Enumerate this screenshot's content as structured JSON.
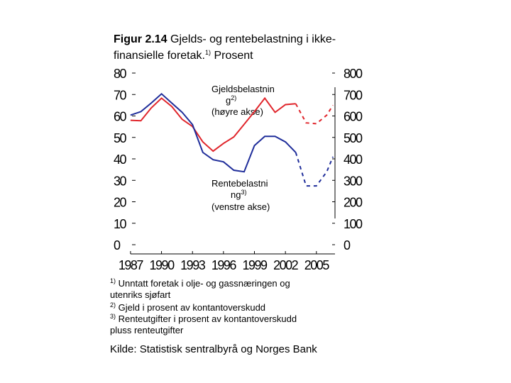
{
  "chart_data": {
    "type": "line",
    "title": {
      "label": "Figur 2.14",
      "line1": "Gjelds- og rentebelastning i ikke-",
      "line2": "finansielle foretak.",
      "note": "1)",
      "suffix": "Prosent"
    },
    "xlim": [
      1986.8,
      2006.8
    ],
    "xticks": [
      1987,
      1990,
      1993,
      1996,
      1999,
      2002,
      2005
    ],
    "ylim": [
      0,
      80
    ],
    "yticks": [
      0,
      10,
      20,
      30,
      40,
      50,
      60,
      70,
      80
    ],
    "y2lim": [
      0,
      800
    ],
    "y2ticks": [
      0,
      100,
      200,
      300,
      400,
      500,
      600,
      700,
      800
    ],
    "series": [
      {
        "color": "#e0252b",
        "axis": "y2",
        "dashed": false,
        "x": [
          1987,
          1988,
          1989,
          1990,
          1991,
          1992,
          1993,
          1994,
          1995,
          1996,
          1997,
          1998,
          1999,
          2000,
          2001,
          2002,
          2003
        ],
        "values": [
          580,
          578,
          637,
          683,
          644,
          584,
          551,
          479,
          436,
          472,
          502,
          561,
          620,
          683,
          617,
          653,
          657
        ]
      },
      {
        "color": "#e0252b",
        "axis": "y2",
        "dashed": true,
        "x": [
          2003,
          2004,
          2005,
          2006,
          2006.6
        ],
        "values": [
          657,
          568,
          564,
          604,
          650
        ]
      },
      {
        "color": "#1f2d9a",
        "dashed": false,
        "x": [
          1987,
          1988,
          1989,
          1990,
          1991,
          1992,
          1993,
          1994,
          1995,
          1996,
          1997,
          1998,
          1999,
          2000,
          2001,
          2002,
          2003
        ],
        "values": [
          60.4,
          62,
          66,
          70.3,
          66,
          61.7,
          56,
          43,
          39.6,
          38.6,
          34.7,
          34,
          46.2,
          50.5,
          50.5,
          47.9,
          43
        ]
      },
      {
        "color": "#1f2d9a",
        "dashed": true,
        "x": [
          2003,
          2004,
          2005,
          2006,
          2006.6
        ],
        "values": [
          43,
          27.4,
          27.4,
          34,
          41
        ]
      }
    ],
    "annotations": [
      {
        "line1": "Gjeldsbelastnin",
        "line2": "g",
        "note": "2)",
        "line3": "(høyre akse)"
      },
      {
        "line1": "Rentebelastni",
        "line2": "ng",
        "note": "3)",
        "line3": "(venstre akse)"
      }
    ],
    "footnotes": [
      {
        "mark": "1)",
        "line1": "Unntatt foretak i olje- og gassnæringen og",
        "line2": "utenriks sjøfart"
      },
      {
        "mark": "2)",
        "line1": "Gjeld i prosent av kontantoverskudd"
      },
      {
        "mark": "3)",
        "line1": "Renteutgifter i prosent av kontantoverskudd",
        "line2": "pluss renteutgifter"
      }
    ],
    "source": "Kilde: Statistisk sentralbyrå og Norges Bank"
  }
}
